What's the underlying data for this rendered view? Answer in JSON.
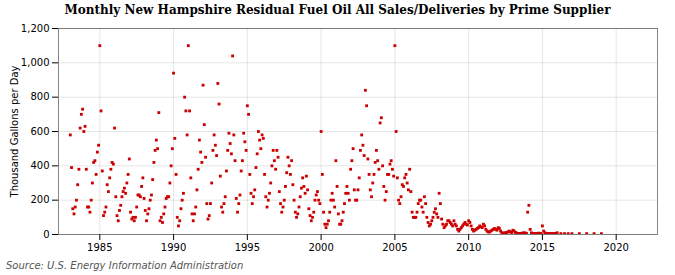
{
  "chart_data": {
    "type": "scatter",
    "title": "Monthly New Hampshire Residual Fuel Oil All Sales/Deliveries by Prime Supplier",
    "ylabel": "Thousand Gallons per Day",
    "source": "Source: U.S. Energy Information Administration",
    "color": "#cc0000",
    "marker": "square",
    "grid": true,
    "xlim": [
      1982.2,
      2022.8
    ],
    "xticks": [
      1985,
      1990,
      1995,
      2000,
      2005,
      2010,
      2015,
      2020
    ],
    "ylim": [
      0,
      1200
    ],
    "yticks": [
      0,
      200,
      400,
      600,
      800,
      {
        "value": 1000,
        "label": "1,000"
      },
      {
        "value": 1200,
        "label": "1,200"
      }
    ],
    "x": [
      1983.0,
      1983.083,
      1983.167,
      1983.25,
      1983.333,
      1983.417,
      1983.5,
      1983.583,
      1983.667,
      1983.75,
      1983.833,
      1983.917,
      1984.0,
      1984.083,
      1984.167,
      1984.25,
      1984.333,
      1984.417,
      1984.5,
      1984.583,
      1984.667,
      1984.75,
      1984.833,
      1984.917,
      1985.0,
      1985.083,
      1985.167,
      1985.25,
      1985.333,
      1985.417,
      1985.5,
      1985.583,
      1985.667,
      1985.75,
      1985.833,
      1985.917,
      1986.0,
      1986.083,
      1986.167,
      1986.25,
      1986.333,
      1986.417,
      1986.5,
      1986.583,
      1986.667,
      1986.75,
      1986.833,
      1986.917,
      1987.0,
      1987.083,
      1987.167,
      1987.25,
      1987.333,
      1987.417,
      1987.5,
      1987.583,
      1987.667,
      1987.75,
      1987.833,
      1987.917,
      1988.0,
      1988.083,
      1988.167,
      1988.25,
      1988.333,
      1988.417,
      1988.5,
      1988.583,
      1988.667,
      1988.75,
      1988.833,
      1988.917,
      1989.0,
      1989.083,
      1989.167,
      1989.25,
      1989.333,
      1989.417,
      1989.5,
      1989.583,
      1989.667,
      1989.75,
      1989.833,
      1989.917,
      1990.0,
      1990.083,
      1990.167,
      1990.25,
      1990.333,
      1990.417,
      1990.5,
      1990.583,
      1990.667,
      1990.75,
      1990.833,
      1990.917,
      1991.0,
      1991.083,
      1991.167,
      1991.25,
      1991.333,
      1991.417,
      1991.5,
      1991.583,
      1991.667,
      1991.75,
      1991.833,
      1991.917,
      1992.0,
      1992.083,
      1992.167,
      1992.25,
      1992.333,
      1992.417,
      1992.5,
      1992.583,
      1992.667,
      1992.75,
      1992.833,
      1992.917,
      1993.0,
      1993.083,
      1993.167,
      1993.25,
      1993.333,
      1993.417,
      1993.5,
      1993.583,
      1993.667,
      1993.75,
      1993.833,
      1993.917,
      1994.0,
      1994.083,
      1994.167,
      1994.25,
      1994.333,
      1994.417,
      1994.5,
      1994.583,
      1994.667,
      1994.75,
      1994.833,
      1994.917,
      1995.0,
      1995.083,
      1995.167,
      1995.25,
      1995.333,
      1995.417,
      1995.5,
      1995.583,
      1995.667,
      1995.75,
      1995.833,
      1995.917,
      1996.0,
      1996.083,
      1996.167,
      1996.25,
      1996.333,
      1996.417,
      1996.5,
      1996.583,
      1996.667,
      1996.75,
      1996.833,
      1996.917,
      1997.0,
      1997.083,
      1997.167,
      1997.25,
      1997.333,
      1997.417,
      1997.5,
      1997.583,
      1997.667,
      1997.75,
      1997.833,
      1997.917,
      1998.0,
      1998.083,
      1998.167,
      1998.25,
      1998.333,
      1998.417,
      1998.5,
      1998.583,
      1998.667,
      1998.75,
      1998.833,
      1998.917,
      1999.0,
      1999.083,
      1999.167,
      1999.25,
      1999.333,
      1999.417,
      1999.5,
      1999.583,
      1999.667,
      1999.75,
      1999.833,
      1999.917,
      2000.0,
      2000.083,
      2000.167,
      2000.25,
      2000.333,
      2000.417,
      2000.5,
      2000.583,
      2000.667,
      2000.75,
      2000.833,
      2000.917,
      2001.0,
      2001.083,
      2001.167,
      2001.25,
      2001.333,
      2001.417,
      2001.5,
      2001.583,
      2001.667,
      2001.75,
      2001.833,
      2001.917,
      2002.0,
      2002.083,
      2002.167,
      2002.25,
      2002.333,
      2002.417,
      2002.5,
      2002.583,
      2002.667,
      2002.75,
      2002.833,
      2002.917,
      2003.0,
      2003.083,
      2003.167,
      2003.25,
      2003.333,
      2003.417,
      2003.5,
      2003.583,
      2003.667,
      2003.75,
      2003.833,
      2003.917,
      2004.0,
      2004.083,
      2004.167,
      2004.25,
      2004.333,
      2004.417,
      2004.5,
      2004.583,
      2004.667,
      2004.75,
      2004.833,
      2004.917,
      2005.0,
      2005.083,
      2005.167,
      2005.25,
      2005.333,
      2005.417,
      2005.5,
      2005.583,
      2005.667,
      2005.75,
      2005.833,
      2005.917,
      2006.0,
      2006.083,
      2006.167,
      2006.25,
      2006.333,
      2006.417,
      2006.5,
      2006.583,
      2006.667,
      2006.75,
      2006.833,
      2006.917,
      2007.0,
      2007.083,
      2007.167,
      2007.25,
      2007.333,
      2007.417,
      2007.5,
      2007.583,
      2007.667,
      2007.75,
      2007.833,
      2007.917,
      2008.0,
      2008.083,
      2008.167,
      2008.25,
      2008.333,
      2008.417,
      2008.5,
      2008.583,
      2008.667,
      2008.75,
      2008.833,
      2008.917,
      2009.0,
      2009.083,
      2009.167,
      2009.25,
      2009.333,
      2009.417,
      2009.5,
      2009.583,
      2009.667,
      2009.75,
      2009.833,
      2009.917,
      2010.0,
      2010.083,
      2010.167,
      2010.25,
      2010.333,
      2010.417,
      2010.5,
      2010.583,
      2010.667,
      2010.75,
      2010.833,
      2010.917,
      2011.0,
      2011.083,
      2011.167,
      2011.25,
      2011.333,
      2011.417,
      2011.5,
      2011.583,
      2011.667,
      2011.75,
      2011.833,
      2011.917,
      2012.0,
      2012.083,
      2012.167,
      2012.25,
      2012.333,
      2012.417,
      2012.5,
      2012.583,
      2012.667,
      2012.75,
      2012.833,
      2012.917,
      2013.0,
      2013.083,
      2013.167,
      2013.25,
      2013.333,
      2013.417,
      2013.5,
      2013.583,
      2013.667,
      2013.75,
      2013.833,
      2013.917,
      2014.0,
      2014.083,
      2014.167,
      2014.25,
      2014.333,
      2014.417,
      2014.5,
      2014.583,
      2014.667,
      2014.75,
      2014.833,
      2014.917,
      2015.0,
      2015.083,
      2015.167,
      2015.25,
      2015.333,
      2015.417,
      2015.5,
      2015.583,
      2015.667,
      2015.75,
      2015.833,
      2015.917,
      2016.0,
      2016.25,
      2016.5,
      2016.75,
      2017.0,
      2017.5,
      2018.0,
      2018.5,
      2019.0
    ],
    "values": [
      580,
      390,
      150,
      120,
      160,
      200,
      290,
      380,
      620,
      700,
      730,
      600,
      630,
      380,
      160,
      160,
      130,
      200,
      300,
      420,
      430,
      350,
      480,
      520,
      1100,
      720,
      370,
      110,
      130,
      160,
      290,
      250,
      330,
      380,
      420,
      410,
      620,
      220,
      110,
      80,
      140,
      170,
      220,
      250,
      270,
      240,
      300,
      350,
      440,
      130,
      90,
      100,
      80,
      100,
      160,
      230,
      230,
      220,
      280,
      330,
      210,
      140,
      80,
      120,
      150,
      200,
      230,
      320,
      420,
      490,
      550,
      500,
      710,
      80,
      100,
      70,
      120,
      160,
      210,
      220,
      220,
      300,
      400,
      500,
      940,
      560,
      350,
      100,
      50,
      80,
      150,
      200,
      240,
      800,
      720,
      580,
      1100,
      720,
      330,
      120,
      80,
      120,
      160,
      260,
      380,
      550,
      480,
      420,
      870,
      640,
      450,
      180,
      90,
      110,
      180,
      300,
      490,
      580,
      520,
      460,
      880,
      760,
      340,
      160,
      130,
      180,
      220,
      370,
      490,
      590,
      530,
      470,
      1040,
      580,
      430,
      210,
      130,
      180,
      230,
      370,
      430,
      590,
      540,
      490,
      750,
      700,
      350,
      240,
      180,
      220,
      260,
      390,
      470,
      600,
      550,
      500,
      580,
      560,
      350,
      220,
      160,
      200,
      240,
      300,
      400,
      490,
      430,
      380,
      490,
      450,
      250,
      180,
      130,
      160,
      200,
      280,
      360,
      450,
      400,
      350,
      430,
      290,
      200,
      130,
      100,
      120,
      160,
      220,
      270,
      330,
      280,
      240,
      340,
      260,
      150,
      110,
      80,
      100,
      130,
      200,
      230,
      250,
      200,
      180,
      600,
      350,
      130,
      60,
      40,
      60,
      80,
      130,
      200,
      240,
      200,
      160,
      430,
      280,
      120,
      60,
      60,
      80,
      130,
      180,
      240,
      280,
      240,
      200,
      380,
      430,
      500,
      260,
      200,
      200,
      260,
      330,
      490,
      580,
      520,
      460,
      840,
      750,
      440,
      350,
      260,
      220,
      300,
      350,
      420,
      490,
      430,
      380,
      650,
      680,
      400,
      280,
      200,
      250,
      350,
      350,
      410,
      430,
      380,
      340,
      1100,
      600,
      330,
      200,
      180,
      220,
      290,
      280,
      330,
      350,
      300,
      260,
      380,
      250,
      130,
      100,
      100,
      100,
      130,
      180,
      200,
      200,
      160,
      130,
      220,
      180,
      100,
      70,
      50,
      60,
      80,
      100,
      130,
      150,
      120,
      100,
      240,
      180,
      90,
      60,
      40,
      50,
      60,
      80,
      80,
      70,
      60,
      50,
      80,
      60,
      50,
      30,
      20,
      30,
      40,
      50,
      60,
      70,
      60,
      55,
      80,
      70,
      50,
      30,
      20,
      25,
      30,
      35,
      40,
      50,
      45,
      40,
      60,
      50,
      30,
      20,
      15,
      15,
      20,
      25,
      30,
      35,
      30,
      25,
      40,
      35,
      20,
      10,
      8,
      8,
      10,
      12,
      15,
      20,
      15,
      12,
      25,
      20,
      12,
      8,
      5,
      5,
      6,
      7,
      8,
      10,
      8,
      7,
      130,
      170,
      30,
      10,
      5,
      5,
      5,
      5,
      5,
      8,
      6,
      5,
      50,
      20,
      10,
      5,
      5,
      5,
      5,
      5,
      5,
      5,
      5,
      5,
      10,
      5,
      5,
      5,
      5,
      5,
      5,
      5,
      5
    ]
  }
}
